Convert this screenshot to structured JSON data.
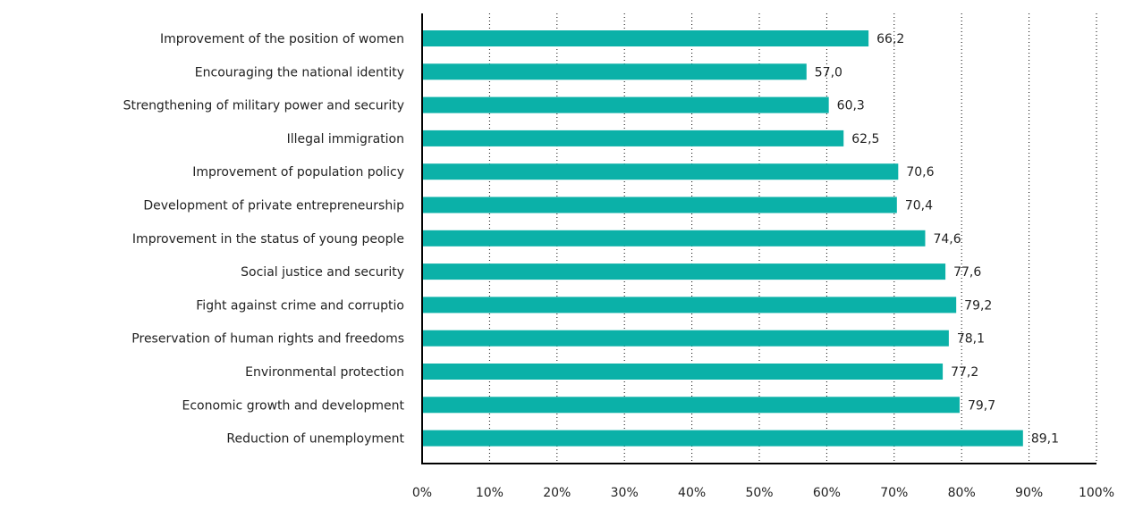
{
  "colors": {
    "bar": "#0bb1a8",
    "text": "#222222",
    "axis": "#000000",
    "grid": "#000000"
  },
  "chart_data": {
    "type": "bar",
    "orientation": "horizontal",
    "categories": [
      "Improvement of the position of women",
      "Encouraging the national identity",
      "Strengthening of military power and security",
      "Illegal immigration",
      "Improvement of population policy",
      "Development of private entrepreneurship",
      "Improvement in the status of young people",
      "Social justice and security",
      "Fight against crime and corruptio",
      "Preservation of human rights and freedoms",
      "Environmental protection",
      "Economic growth and development",
      "Reduction of unemployment"
    ],
    "values": [
      66.2,
      57.0,
      60.3,
      62.5,
      70.6,
      70.4,
      74.6,
      77.6,
      79.2,
      78.1,
      77.2,
      79.7,
      89.1
    ],
    "value_labels": [
      "66,2",
      "57,0",
      "60,3",
      "62,5",
      "70,6",
      "70,4",
      "74,6",
      "77,6",
      "79,2",
      "78,1",
      "77,2",
      "79,7",
      "89,1"
    ],
    "xlim": [
      0,
      100
    ],
    "xticks": [
      0,
      10,
      20,
      30,
      40,
      50,
      60,
      70,
      80,
      90,
      100
    ],
    "xtick_labels": [
      "0%",
      "10%",
      "20%",
      "30%",
      "40%",
      "50%",
      "60%",
      "70%",
      "80%",
      "90%",
      "100%"
    ],
    "title": "",
    "xlabel": "",
    "ylabel": "",
    "grid": "vertical dotted",
    "legend": "none"
  }
}
